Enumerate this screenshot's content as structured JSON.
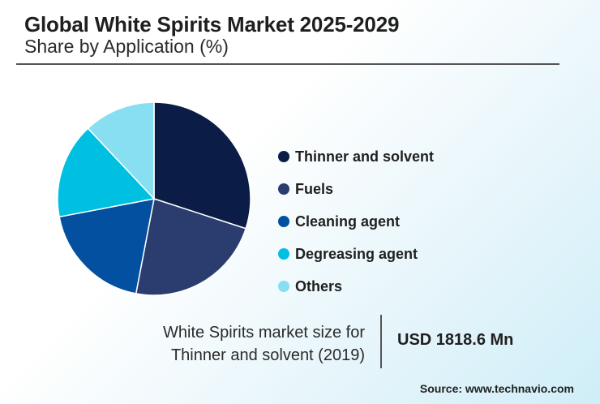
{
  "header": {
    "title": "Global White Spirits Market 2025-2029",
    "subtitle": "Share by Application (%)"
  },
  "chart_data": {
    "type": "pie",
    "categories": [
      "Thinner and solvent",
      "Fuels",
      "Cleaning agent",
      "Degreasing agent",
      "Others"
    ],
    "values": [
      30,
      23,
      19,
      16,
      12
    ],
    "colors": [
      "#0b1d46",
      "#2b3d6f",
      "#0450a0",
      "#00c0e2",
      "#88dff2"
    ],
    "start_angle_deg": 0,
    "legend_position": "right"
  },
  "info": {
    "text_line1": "White Spirits market size for",
    "text_line2": "Thinner and solvent (2019)",
    "value": "USD 1818.6 Mn"
  },
  "source": "Source: www.technavio.com"
}
